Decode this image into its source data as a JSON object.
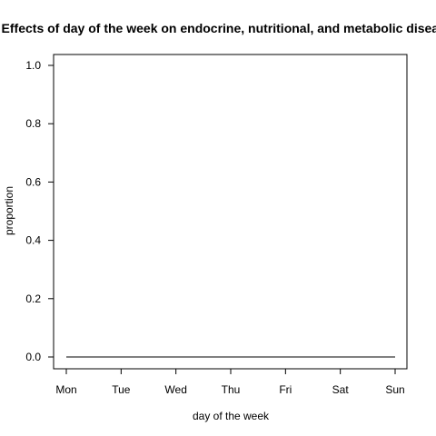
{
  "chart_data": {
    "type": "line",
    "title": "Effects of day of the week on endocrine, nutritional, and metabolic diseases",
    "xlabel": "day of the week",
    "ylabel": "proportion",
    "categories": [
      "Mon",
      "Tue",
      "Wed",
      "Thu",
      "Fri",
      "Sat",
      "Sun"
    ],
    "series": [
      {
        "values": [
          0,
          0,
          0,
          0,
          0,
          0,
          0
        ]
      }
    ],
    "ylim": [
      0,
      1.0
    ],
    "yticks": [
      0.0,
      0.2,
      0.4,
      0.6,
      0.8,
      1.0
    ],
    "ytick_labels": [
      "0.0",
      "0.2",
      "0.4",
      "0.6",
      "0.8",
      "1.0"
    ],
    "grid": false,
    "line_color": "#000000"
  }
}
